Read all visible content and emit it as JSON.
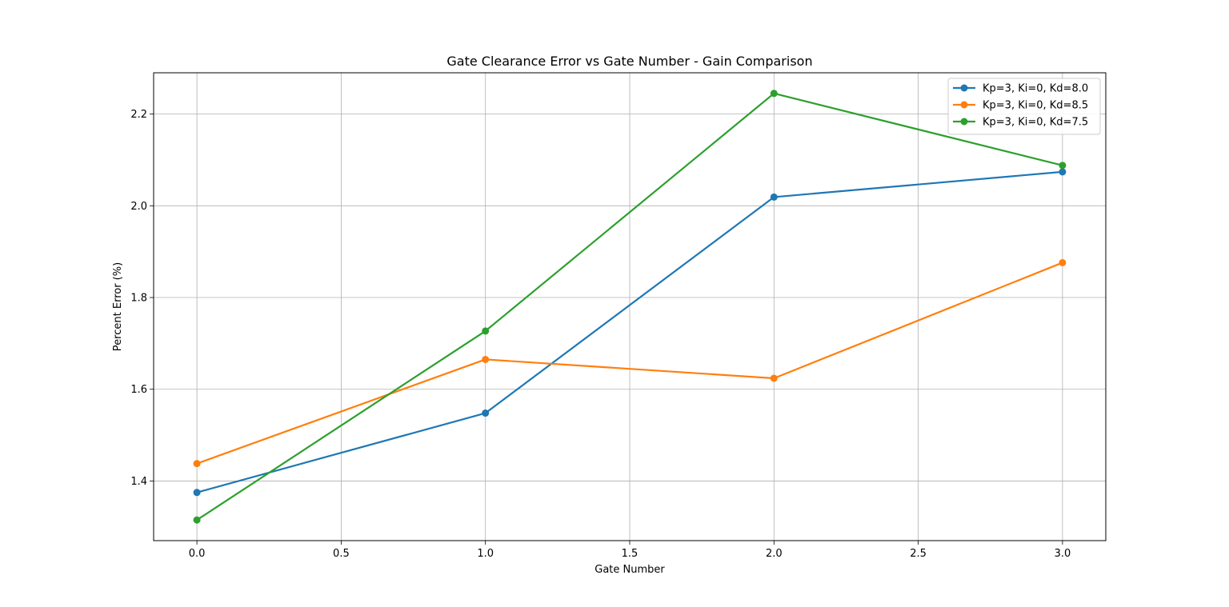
{
  "chart_data": {
    "type": "line",
    "title": "Gate Clearance Error vs Gate Number - Gain Comparison",
    "xlabel": "Gate Number",
    "ylabel": "Percent Error (%)",
    "x": [
      0,
      1,
      2,
      3
    ],
    "xlim": [
      -0.15,
      3.15
    ],
    "ylim": [
      1.27,
      2.29
    ],
    "xticks": [
      "0.0",
      "0.5",
      "1.0",
      "1.5",
      "2.0",
      "2.5",
      "3.0"
    ],
    "xtick_values": [
      0,
      0.5,
      1,
      1.5,
      2,
      2.5,
      3
    ],
    "yticks": [
      "1.4",
      "1.6",
      "1.8",
      "2.0",
      "2.2"
    ],
    "ytick_values": [
      1.4,
      1.6,
      1.8,
      2.0,
      2.2
    ],
    "grid": true,
    "legend_position": "top-right",
    "series": [
      {
        "name": "Kp=3, Ki=0, Kd=8.0",
        "color": "#1f77b4",
        "values": [
          1.375,
          1.548,
          2.019,
          2.074
        ]
      },
      {
        "name": "Kp=3, Ki=0, Kd=8.5",
        "color": "#ff7f0e",
        "values": [
          1.438,
          1.665,
          1.624,
          1.876
        ]
      },
      {
        "name": "Kp=3, Ki=0, Kd=7.5",
        "color": "#2ca02c",
        "values": [
          1.315,
          1.727,
          2.245,
          2.088
        ]
      }
    ]
  }
}
